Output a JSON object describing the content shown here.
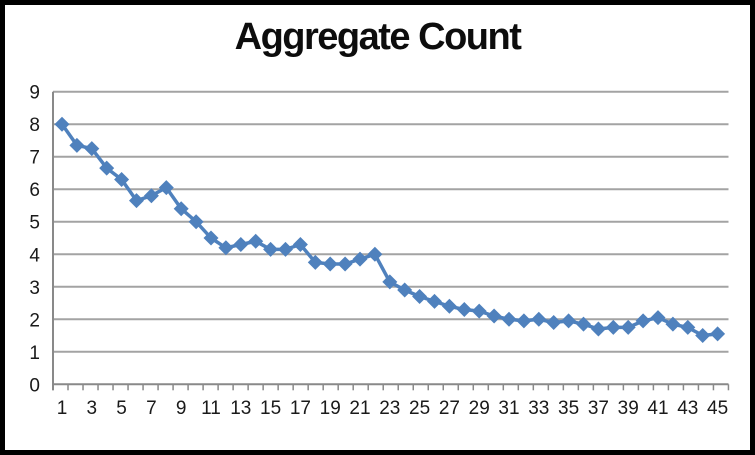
{
  "chart_data": {
    "type": "line",
    "title": "Aggregate Count",
    "xlabel": "",
    "ylabel": "",
    "legend": "none",
    "grid": "horizontal",
    "marker": "diamond",
    "ylim": [
      0,
      9
    ],
    "ytick_labels": [
      "0",
      "1",
      "2",
      "3",
      "4",
      "5",
      "6",
      "7",
      "8",
      "9"
    ],
    "xtick_labels": [
      "1",
      "3",
      "5",
      "7",
      "9",
      "11",
      "13",
      "15",
      "17",
      "19",
      "21",
      "23",
      "25",
      "27",
      "29",
      "31",
      "33",
      "35",
      "37",
      "39",
      "41",
      "43",
      "45"
    ],
    "x": [
      1,
      2,
      3,
      4,
      5,
      6,
      7,
      8,
      9,
      10,
      11,
      12,
      13,
      14,
      15,
      16,
      17,
      18,
      19,
      20,
      21,
      22,
      23,
      24,
      25,
      26,
      27,
      28,
      29,
      30,
      31,
      32,
      33,
      34,
      35,
      36,
      37,
      38,
      39,
      40,
      41,
      42,
      43,
      44,
      45
    ],
    "values": [
      8.0,
      7.35,
      7.25,
      6.65,
      6.3,
      5.65,
      5.8,
      6.05,
      5.4,
      5.0,
      4.5,
      4.2,
      4.3,
      4.4,
      4.15,
      4.15,
      4.3,
      3.75,
      3.7,
      3.7,
      3.85,
      4.0,
      3.15,
      2.9,
      2.7,
      2.55,
      2.4,
      2.3,
      2.25,
      2.1,
      2.0,
      1.95,
      2.0,
      1.9,
      1.95,
      1.85,
      1.7,
      1.75,
      1.75,
      1.95,
      2.05,
      1.85,
      1.75,
      1.5,
      1.55
    ],
    "colors": {
      "series": "#4F81BD",
      "gridline": "#A3A3A3",
      "axis": "#898989",
      "text": "#1A1A1A",
      "background": "#FFFFFF",
      "frame_border": "#000000"
    }
  }
}
